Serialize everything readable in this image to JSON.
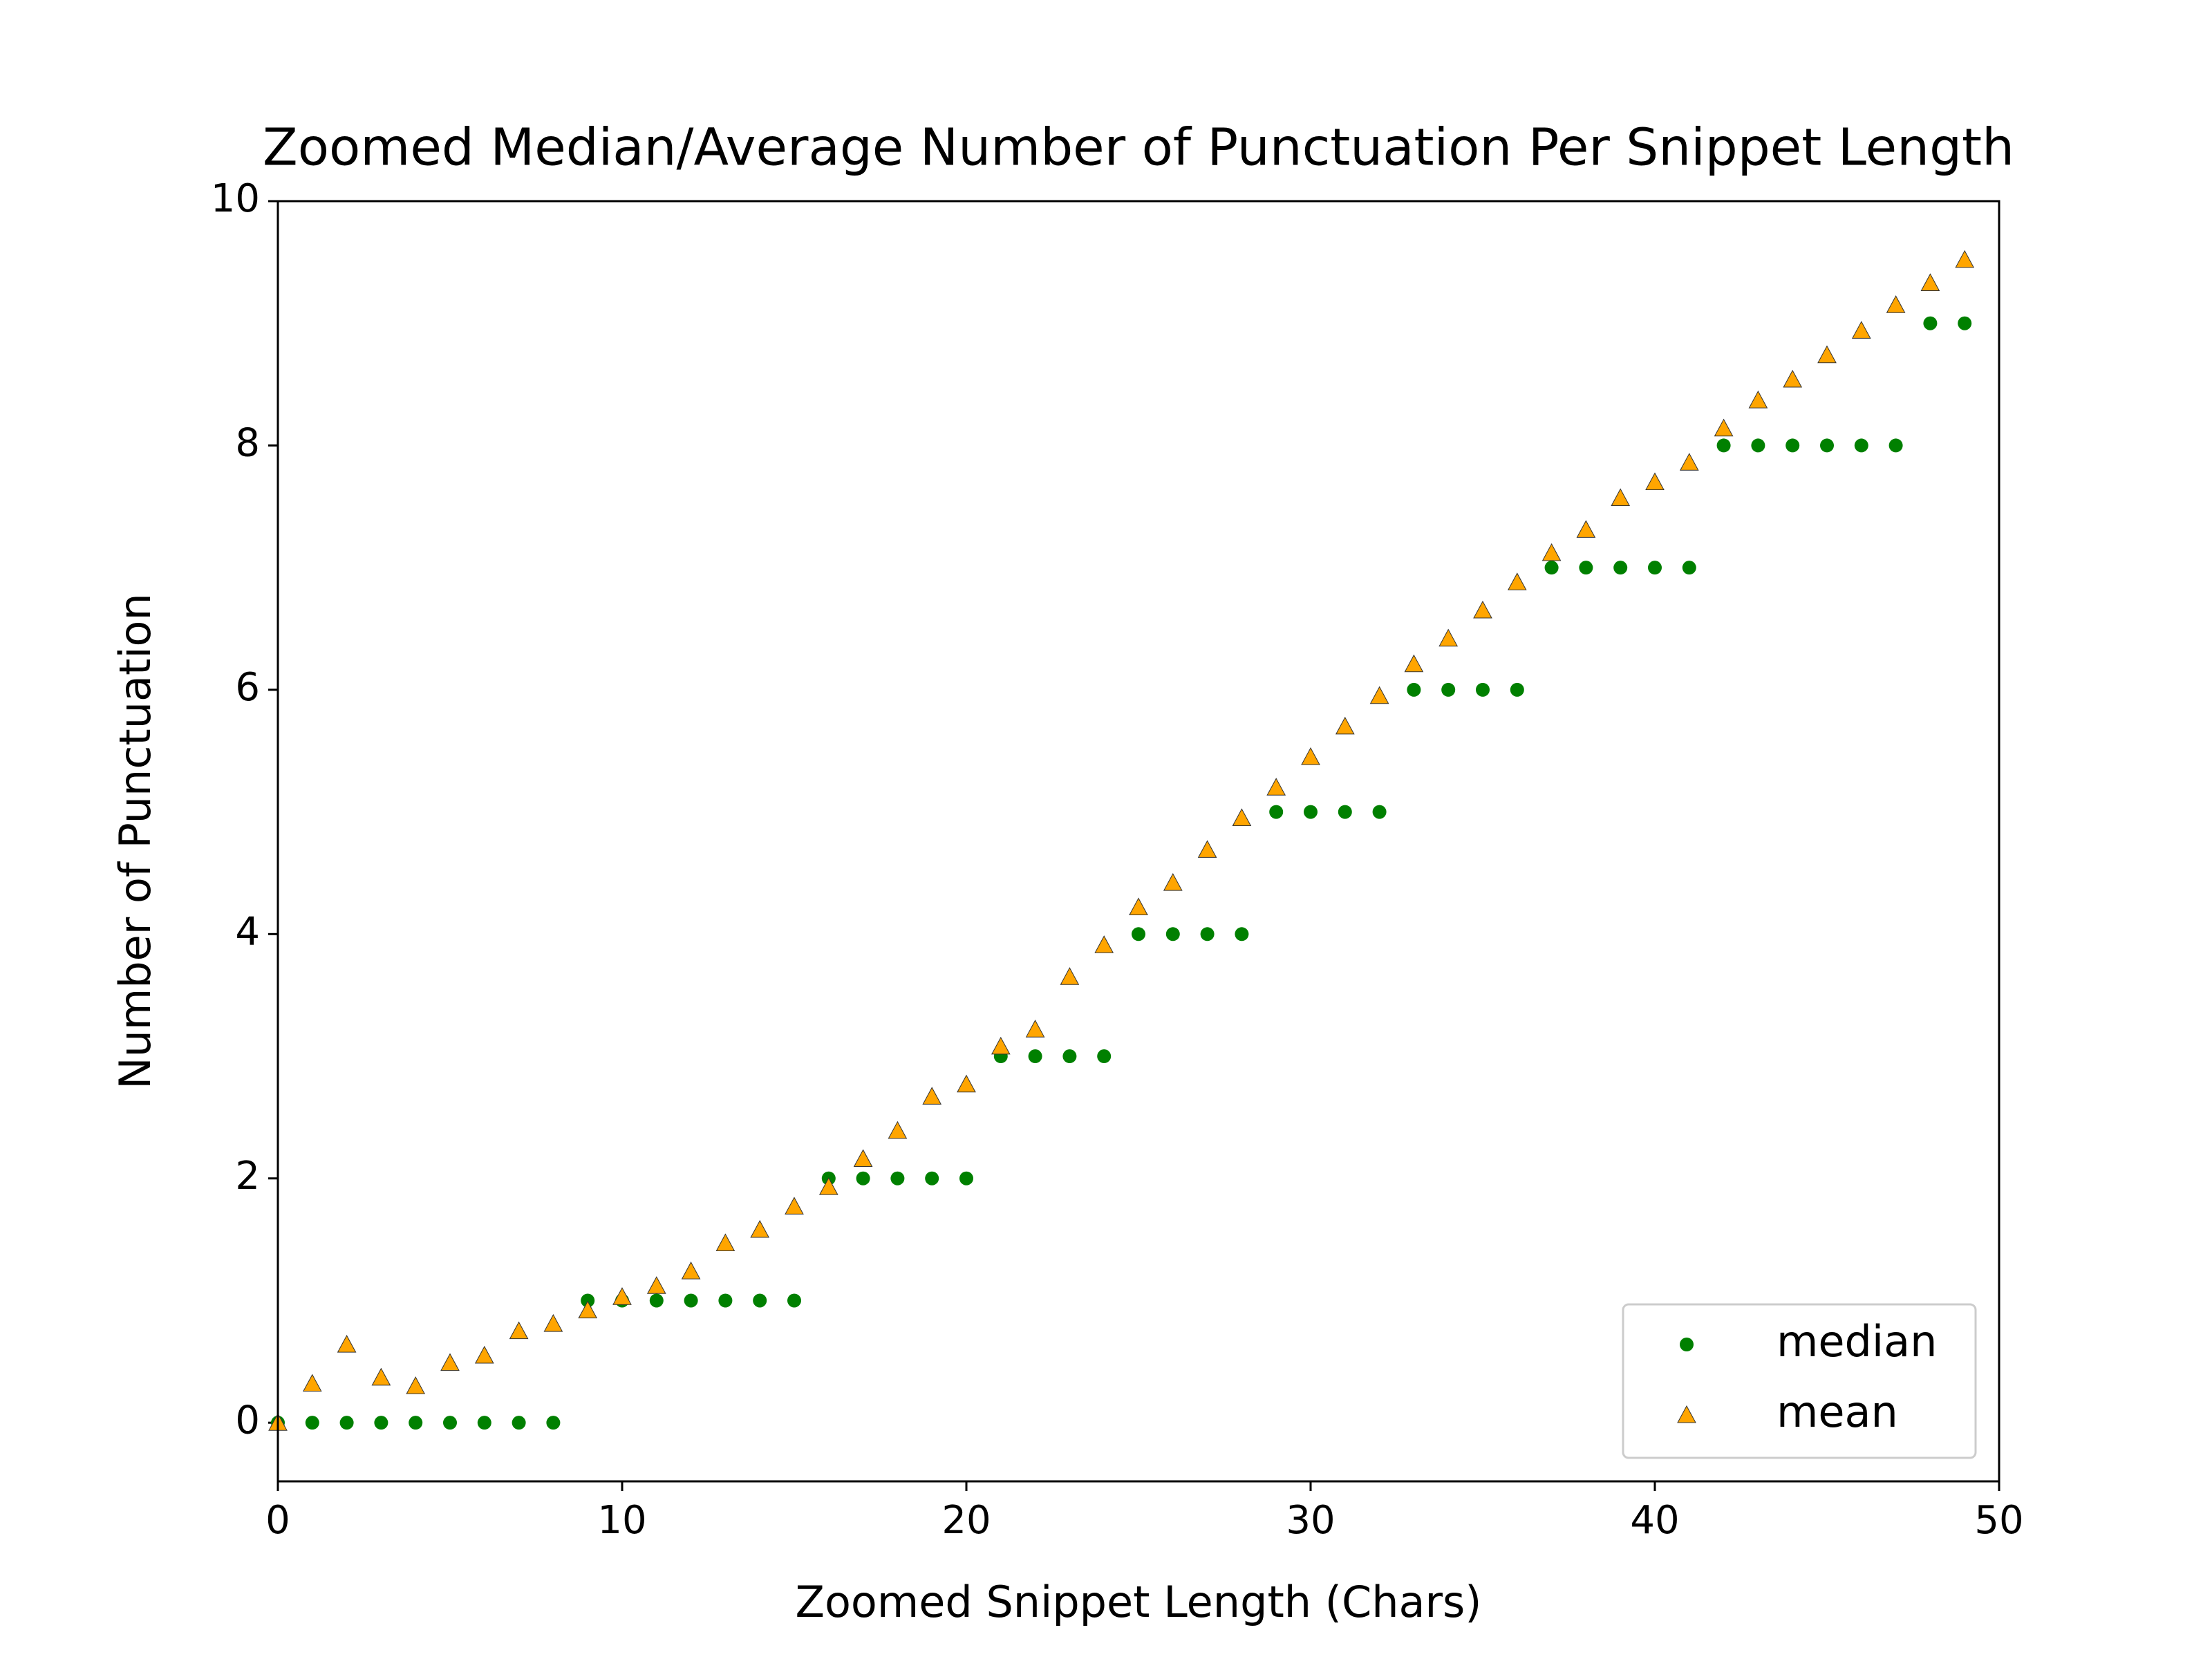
{
  "chart_data": {
    "type": "scatter",
    "title": "Zoomed Median/Average Number of Punctuation Per Snippet Length",
    "x_label": "Zoomed Snippet Length (Chars)",
    "y_label": "Number of Punctuation",
    "x": [
      0,
      1,
      2,
      3,
      4,
      5,
      6,
      7,
      8,
      9,
      10,
      11,
      12,
      13,
      14,
      15,
      16,
      17,
      18,
      19,
      20,
      21,
      22,
      23,
      24,
      25,
      26,
      27,
      28,
      29,
      30,
      31,
      32,
      33,
      34,
      35,
      36,
      37,
      38,
      39,
      40,
      41,
      42,
      43,
      44,
      45,
      46,
      47,
      48,
      49
    ],
    "series": [
      {
        "name": "median",
        "color": "#008000",
        "marker": "circle",
        "values": [
          0,
          0,
          0,
          0,
          0,
          0,
          0,
          0,
          0,
          1,
          1,
          1,
          1,
          1,
          1,
          1,
          2,
          2,
          2,
          2,
          2,
          3,
          3,
          3,
          3,
          4,
          4,
          4,
          4,
          5,
          5,
          5,
          5,
          6,
          6,
          6,
          6,
          7,
          7,
          7,
          7,
          7,
          8,
          8,
          8,
          8,
          8,
          8,
          9,
          9
        ]
      },
      {
        "name": "mean",
        "color": "#ffa500",
        "marker": "triangle",
        "values": [
          0,
          0.32,
          0.64,
          0.37,
          0.3,
          0.49,
          0.55,
          0.75,
          0.81,
          0.92,
          1.03,
          1.12,
          1.24,
          1.47,
          1.58,
          1.77,
          1.93,
          2.16,
          2.39,
          2.67,
          2.77,
          3.08,
          3.22,
          3.65,
          3.91,
          4.22,
          4.42,
          4.69,
          4.95,
          5.2,
          5.45,
          5.7,
          5.95,
          6.21,
          6.42,
          6.65,
          6.88,
          7.12,
          7.31,
          7.57,
          7.7,
          7.86,
          8.14,
          8.37,
          8.54,
          8.74,
          8.94,
          9.15,
          9.33,
          9.52
        ]
      }
    ],
    "xlim": [
      0,
      50
    ],
    "xticks": [
      0,
      10,
      20,
      30,
      40,
      50
    ],
    "ylim": [
      -0.48,
      10.0
    ],
    "yticks": [
      0,
      2,
      4,
      6,
      8,
      10
    ],
    "grid": false,
    "legend": "lower right"
  }
}
